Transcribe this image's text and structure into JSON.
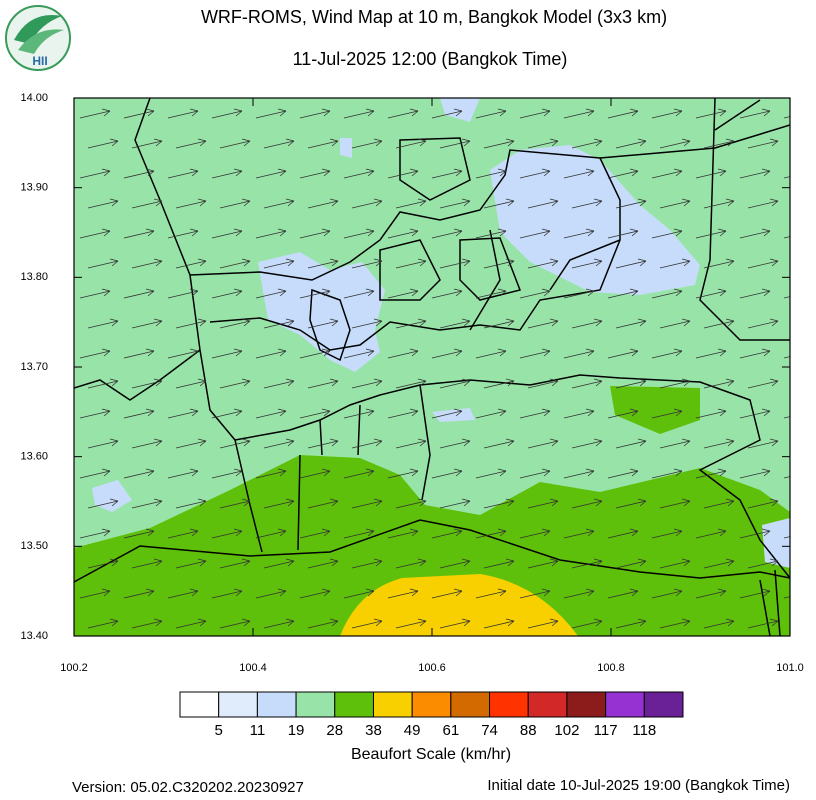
{
  "header": {
    "title": "WRF-ROMS, Wind Map at 10 m, Bangkok Model (3x3 km)",
    "subtitle": "11-Jul-2025 12:00 (Bangkok Time)",
    "logo": "HII"
  },
  "map": {
    "xlim": [
      100.2,
      101.0
    ],
    "ylim": [
      13.4,
      14.0
    ],
    "xticks": [
      100.2,
      100.4,
      100.6,
      100.8,
      {
        "value": 101.0,
        "label": "101.0"
      }
    ],
    "yticks": [
      {
        "value": 14.0,
        "label": "14.00"
      },
      {
        "value": 13.9,
        "label": "13.90"
      },
      {
        "value": 13.8,
        "label": "13.80"
      },
      {
        "value": 13.7,
        "label": "13.70"
      },
      {
        "value": 13.6,
        "label": "13.60"
      },
      {
        "value": 13.5,
        "label": "13.50"
      },
      {
        "value": 13.4,
        "label": "13.40"
      }
    ]
  },
  "legend": {
    "title": "Beaufort Scale (km/hr)",
    "colors": [
      "#ffffff",
      "#e0ecfc",
      "#c6dcfa",
      "#98e4a8",
      "#5ec00a",
      "#f8d000",
      "#fb8c00",
      "#d26a00",
      "#ff3200",
      "#d22828",
      "#8c1c1c",
      "#9632d2",
      "#6a2096"
    ],
    "labels": [
      5,
      11,
      19,
      28,
      38,
      49,
      61,
      74,
      88,
      102,
      117,
      118
    ]
  },
  "footer": {
    "version": "Version: 05.02.C320202.20230927",
    "initial_date": "Initial date 10-Jul-2025 19:00 (Bangkok Time)"
  }
}
